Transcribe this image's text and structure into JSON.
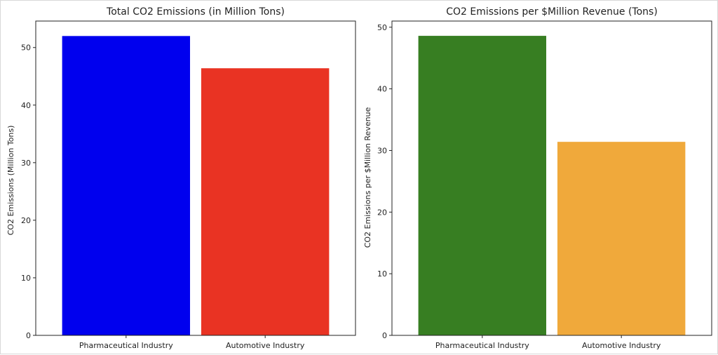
{
  "chart_data": [
    {
      "type": "bar",
      "title": "Total CO2 Emissions (in Million Tons)",
      "xlabel": "",
      "ylabel": "CO2 Emissions (Million Tons)",
      "categories": [
        "Pharmaceutical Industry",
        "Automotive Industry"
      ],
      "values": [
        52.0,
        46.4
      ],
      "colors": [
        "#0000ee",
        "#e93323"
      ],
      "ylim": [
        0,
        54.6
      ],
      "yticks": [
        0,
        10,
        20,
        30,
        40,
        50
      ],
      "grid": false
    },
    {
      "type": "bar",
      "title": "CO2 Emissions per $Million Revenue (Tons)",
      "xlabel": "",
      "ylabel": "CO2 Emissions per $Million Revenue",
      "categories": [
        "Pharmaceutical Industry",
        "Automotive Industry"
      ],
      "values": [
        48.6,
        31.4
      ],
      "colors": [
        "#377e22",
        "#f0a93b"
      ],
      "ylim": [
        0,
        51.0
      ],
      "yticks": [
        0,
        10,
        20,
        30,
        40,
        50
      ],
      "grid": false
    }
  ]
}
